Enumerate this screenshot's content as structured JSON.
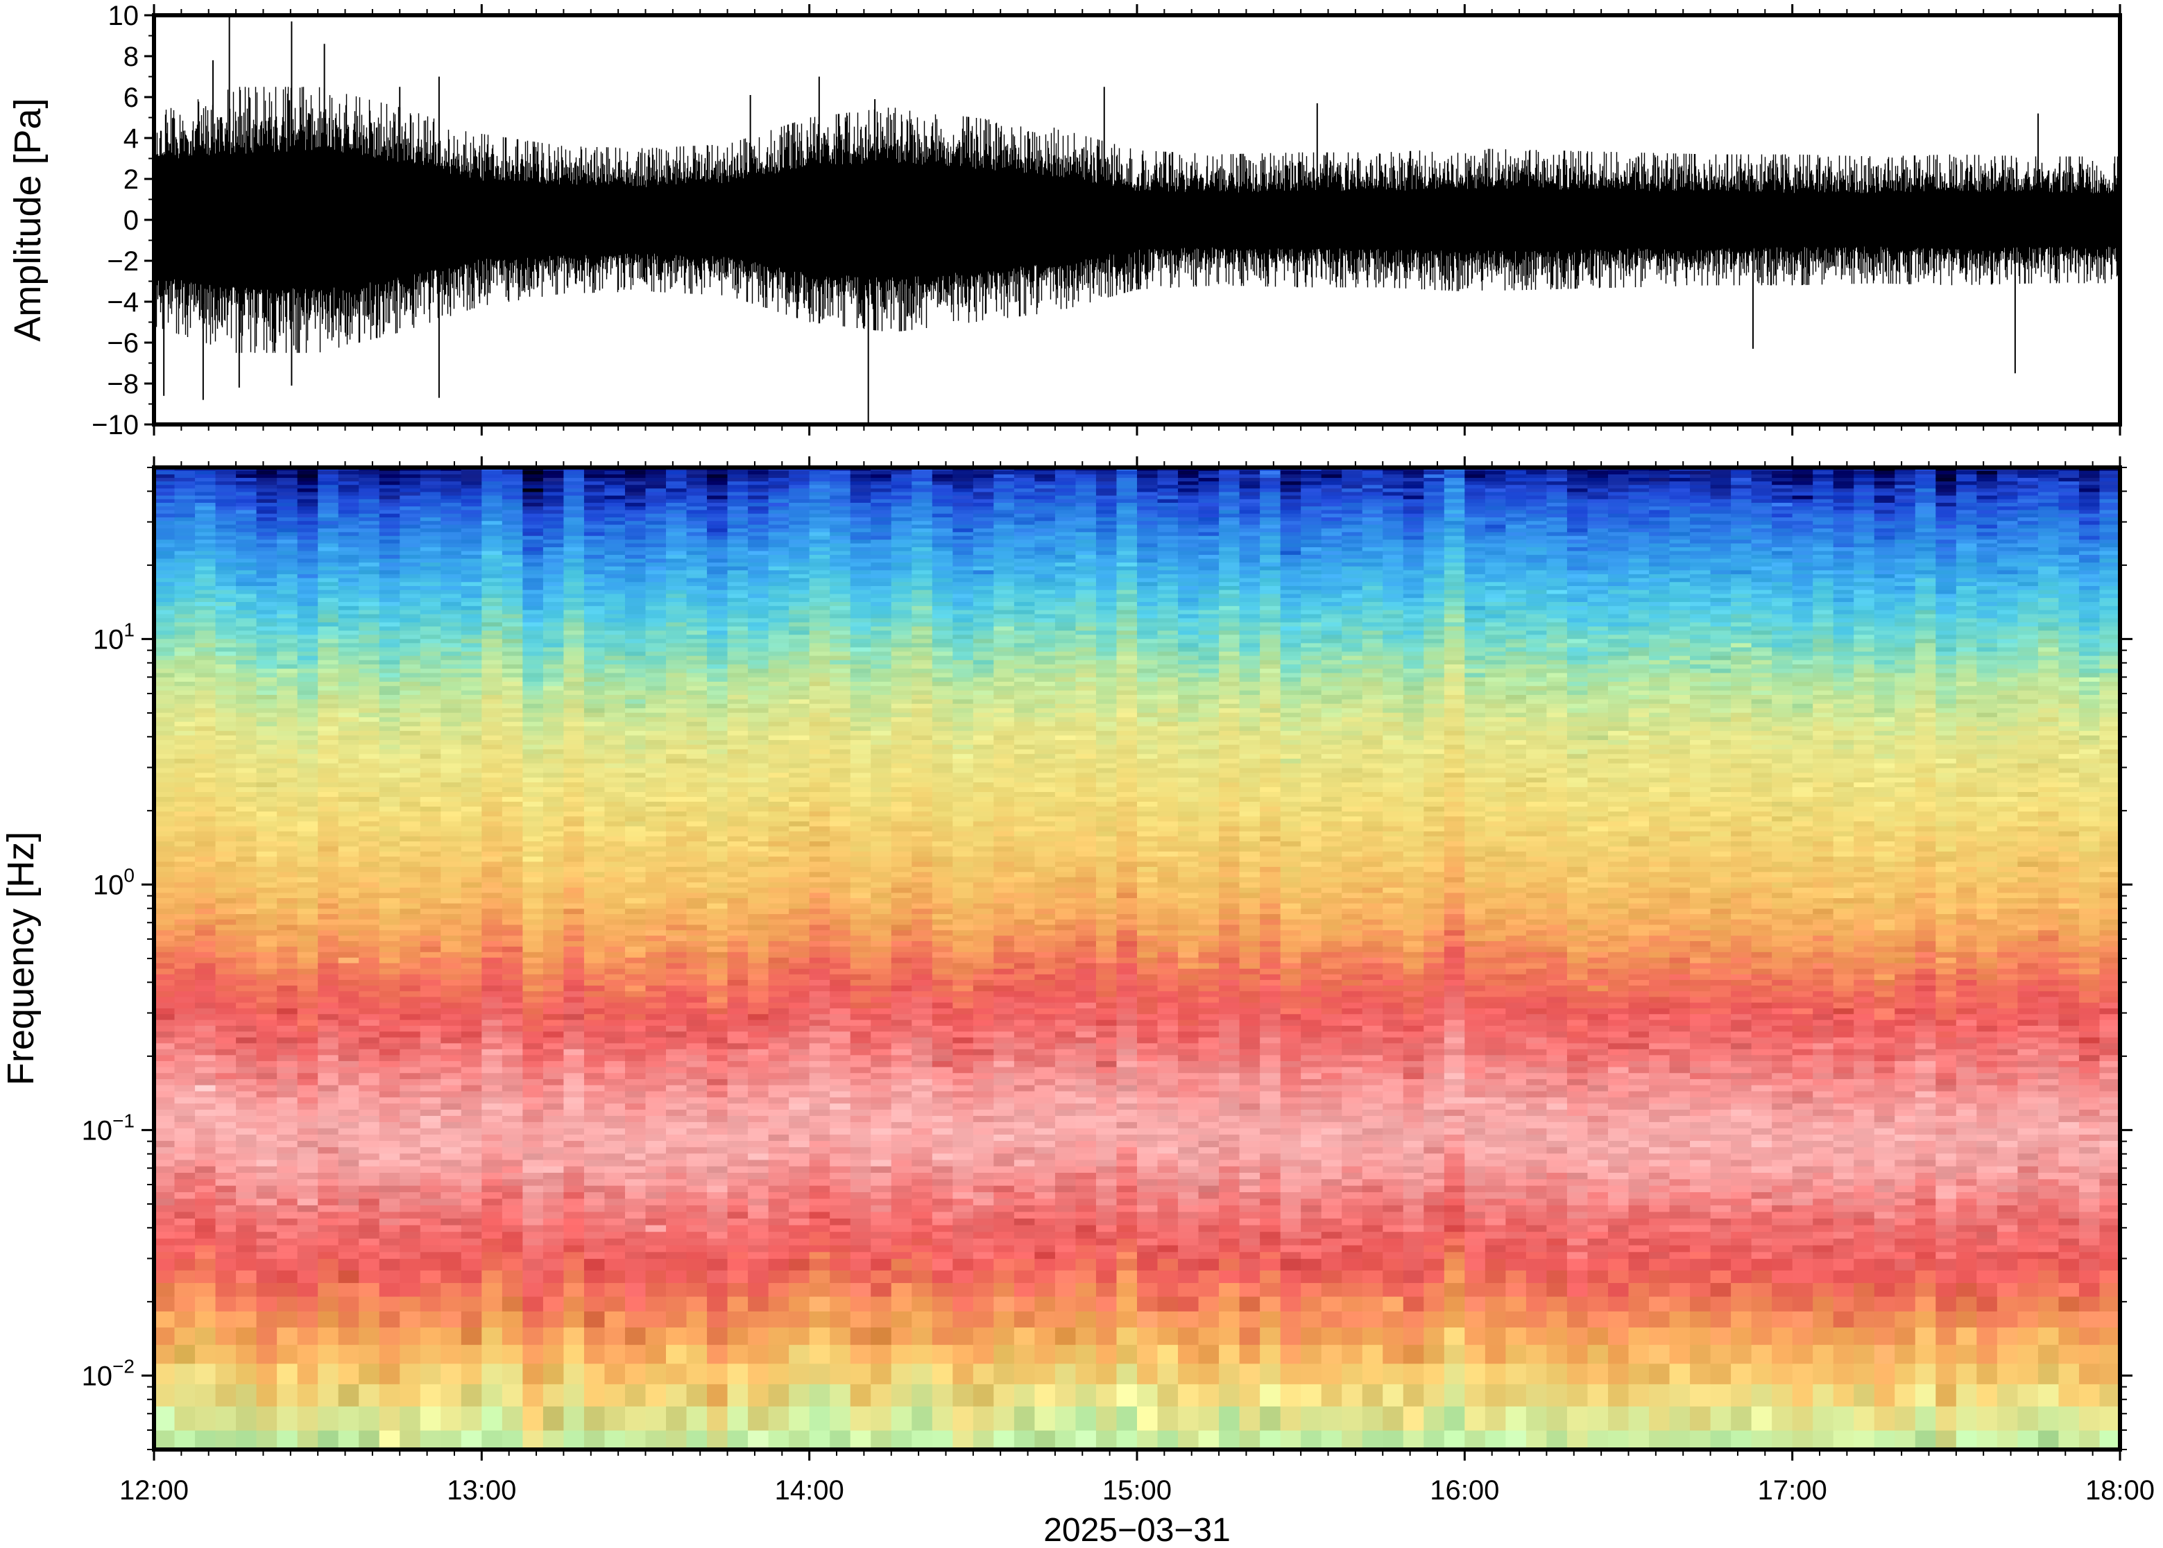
{
  "chart_data": [
    {
      "type": "line",
      "panel": "waveform",
      "title": "",
      "ylabel": "Amplitude [Pa]",
      "ylim": [
        -10,
        10
      ],
      "yticks": [
        -10,
        -8,
        -6,
        -4,
        -2,
        0,
        2,
        4,
        6,
        8,
        10
      ],
      "ytick_labels": [
        "−10",
        "−8",
        "−6",
        "−4",
        "−2",
        "0",
        "2",
        "4",
        "6",
        "8",
        "10"
      ],
      "xlim_hours": [
        12,
        18
      ],
      "envelope": {
        "x_hours": [
          12.0,
          12.25,
          12.5,
          12.75,
          13.0,
          13.25,
          13.5,
          13.75,
          14.0,
          14.25,
          14.5,
          14.75,
          15.0,
          15.25,
          15.5,
          15.75,
          16.0,
          16.25,
          16.5,
          16.75,
          17.0,
          17.25,
          17.5,
          17.75,
          18.0
        ],
        "core_amplitude": [
          2.8,
          3.2,
          3.4,
          2.8,
          1.9,
          1.7,
          1.6,
          1.8,
          2.6,
          2.8,
          2.5,
          2.1,
          1.4,
          1.3,
          1.4,
          1.4,
          1.5,
          1.5,
          1.4,
          1.4,
          1.3,
          1.3,
          1.4,
          1.3,
          1.3
        ],
        "peak_amplitude": [
          5.2,
          6.5,
          6.5,
          5.5,
          4.2,
          3.6,
          3.5,
          3.7,
          5.0,
          5.5,
          5.0,
          4.5,
          3.4,
          3.2,
          3.3,
          3.3,
          3.5,
          3.4,
          3.3,
          3.2,
          3.2,
          3.1,
          3.2,
          3.1,
          3.1
        ]
      },
      "spikes": [
        {
          "t": 12.03,
          "v": -8.6
        },
        {
          "t": 12.15,
          "v": -8.8
        },
        {
          "t": 12.18,
          "v": 7.8
        },
        {
          "t": 12.23,
          "v": 9.9
        },
        {
          "t": 12.26,
          "v": -8.2
        },
        {
          "t": 12.42,
          "v": 9.7
        },
        {
          "t": 12.42,
          "v": -8.1
        },
        {
          "t": 12.52,
          "v": 8.6
        },
        {
          "t": 12.75,
          "v": 6.5
        },
        {
          "t": 12.87,
          "v": 7.0
        },
        {
          "t": 12.87,
          "v": -8.7
        },
        {
          "t": 13.82,
          "v": 6.1
        },
        {
          "t": 14.03,
          "v": 7.0
        },
        {
          "t": 14.18,
          "v": -10.0
        },
        {
          "t": 14.2,
          "v": 5.9
        },
        {
          "t": 14.9,
          "v": 6.5
        },
        {
          "t": 15.55,
          "v": 5.7
        },
        {
          "t": 16.88,
          "v": -6.3
        },
        {
          "t": 17.68,
          "v": -7.5
        },
        {
          "t": 17.75,
          "v": 5.2
        }
      ]
    },
    {
      "type": "heatmap",
      "panel": "spectrogram",
      "title": "",
      "ylabel": "Frequency [Hz]",
      "yscale": "log",
      "ylim": [
        0.005,
        50
      ],
      "yticks": [
        0.01,
        0.1,
        1,
        10
      ],
      "ytick_labels": [
        {
          "base": "10",
          "exp": "−2"
        },
        {
          "base": "10",
          "exp": "−1"
        },
        {
          "base": "10",
          "exp": "0"
        },
        {
          "base": "10",
          "exp": "1"
        }
      ],
      "xlabel": "2025−03−31",
      "xlim_hours": [
        12,
        18
      ],
      "xticks_hours": [
        12,
        13,
        14,
        15,
        16,
        17,
        18
      ],
      "xtick_labels": [
        "12:00",
        "13:00",
        "14:00",
        "15:00",
        "16:00",
        "17:00",
        "18:00"
      ],
      "time_bins": 96,
      "colormap_profile": {
        "log10_freq": [
          1.699,
          1.6,
          1.45,
          1.3,
          1.15,
          1.0,
          0.85,
          0.6,
          0.3,
          0.0,
          -0.2,
          -0.35,
          -0.5,
          -0.65,
          -0.8,
          -1.0,
          -1.15,
          -1.35,
          -1.55,
          -1.7,
          -1.85,
          -2.0,
          -2.15,
          -2.3
        ],
        "colors": [
          "#0a1a8a",
          "#1f48d8",
          "#2c82e6",
          "#3aa9ee",
          "#4fcbe6",
          "#78dcc8",
          "#b4e6a0",
          "#e6e68a",
          "#f2dc78",
          "#f6c266",
          "#f6a55c",
          "#f27a5a",
          "#ee5a5c",
          "#f07070",
          "#f69292",
          "#f8b0b0",
          "#f6a0a0",
          "#f07272",
          "#ee5a5a",
          "#f2845a",
          "#f6a85a",
          "#f6cc6e",
          "#e4e690",
          "#bef0a8"
        ]
      }
    }
  ]
}
